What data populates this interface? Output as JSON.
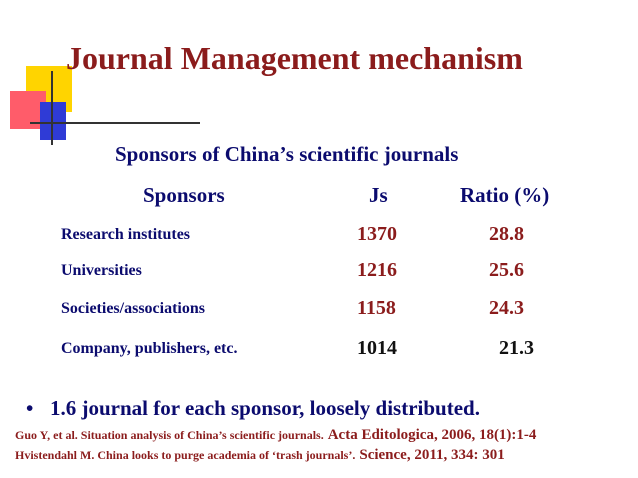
{
  "title": "Journal Management mechanism",
  "subtitle": "Sponsors of China’s scientific journals",
  "table": {
    "headers": {
      "sponsors": "Sponsors",
      "js": "Js",
      "ratio": "Ratio (%)"
    },
    "rows": [
      {
        "name": "Research institutes",
        "js": "1370",
        "ratio": "28.8"
      },
      {
        "name": "Universities",
        "js": "1216",
        "ratio": "25.6"
      },
      {
        "name": "Societies/associations",
        "js": "1158",
        "ratio": "24.3"
      },
      {
        "name": "Company, publishers, etc.",
        "js": "1014",
        "ratio": "21.3"
      }
    ]
  },
  "bullet": {
    "symbol": "•",
    "text": "1.6 journal for each sponsor, loosely distributed."
  },
  "references": [
    {
      "authors": "Guo Y, et al. Situation analysis of China’s scientific journals.",
      "source": "Acta Editologica, 2006, 18(1):1-4"
    },
    {
      "authors": "Hvistendahl M. China looks to purge academia of ‘trash journals’.",
      "source": "Science, 2011, 334: 301"
    }
  ],
  "colors": {
    "title": "#8b1c1c",
    "text": "#0b0b6e",
    "value": "#8b1c1c",
    "yellow": "#ffd400",
    "red": "#ff5c6a",
    "blue": "#2f3bd6"
  }
}
